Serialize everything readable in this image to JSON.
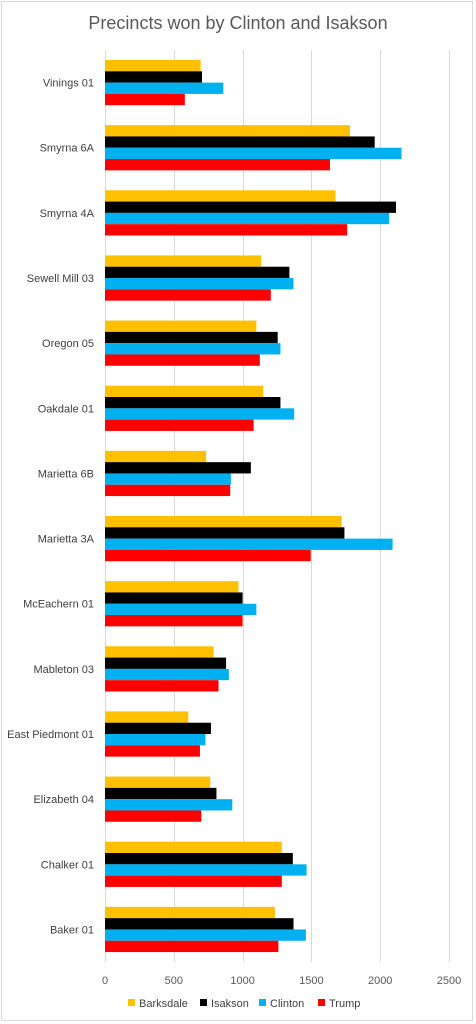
{
  "chart_data": {
    "type": "bar",
    "orientation": "horizontal",
    "title": "Precincts won by Clinton and Isakson",
    "categories": [
      "Vinings 01",
      "Smyrna 6A",
      "Smyrna 4A",
      "Sewell Mill 03",
      "Oregon 05",
      "Oakdale 01",
      "Marietta 6B",
      "Marietta 3A",
      "McEachern 01",
      "Mableton 03",
      "East Piedmont 01",
      "Elizabeth 04",
      "Chalker 01",
      "Baker 01"
    ],
    "series": [
      {
        "name": "Barksdale",
        "color": "#FFC000",
        "values": [
          695,
          1780,
          1675,
          1135,
          1100,
          1150,
          735,
          1720,
          970,
          790,
          605,
          765,
          1285,
          1235
        ]
      },
      {
        "name": "Isakson",
        "color": "#000000",
        "values": [
          705,
          1960,
          2115,
          1340,
          1255,
          1275,
          1060,
          1740,
          1000,
          880,
          770,
          810,
          1365,
          1370
        ]
      },
      {
        "name": "Clinton",
        "color": "#00B0F0",
        "values": [
          860,
          2155,
          2065,
          1370,
          1275,
          1375,
          915,
          2090,
          1100,
          900,
          730,
          925,
          1465,
          1460
        ]
      },
      {
        "name": "Trump",
        "color": "#FF0000",
        "values": [
          580,
          1635,
          1760,
          1205,
          1125,
          1080,
          910,
          1495,
          1000,
          825,
          690,
          700,
          1285,
          1260
        ]
      }
    ],
    "xlim": [
      0,
      2500
    ],
    "xticks": [
      0,
      500,
      1000,
      1500,
      2000,
      2500
    ],
    "grid": true,
    "legend": "bottom"
  }
}
